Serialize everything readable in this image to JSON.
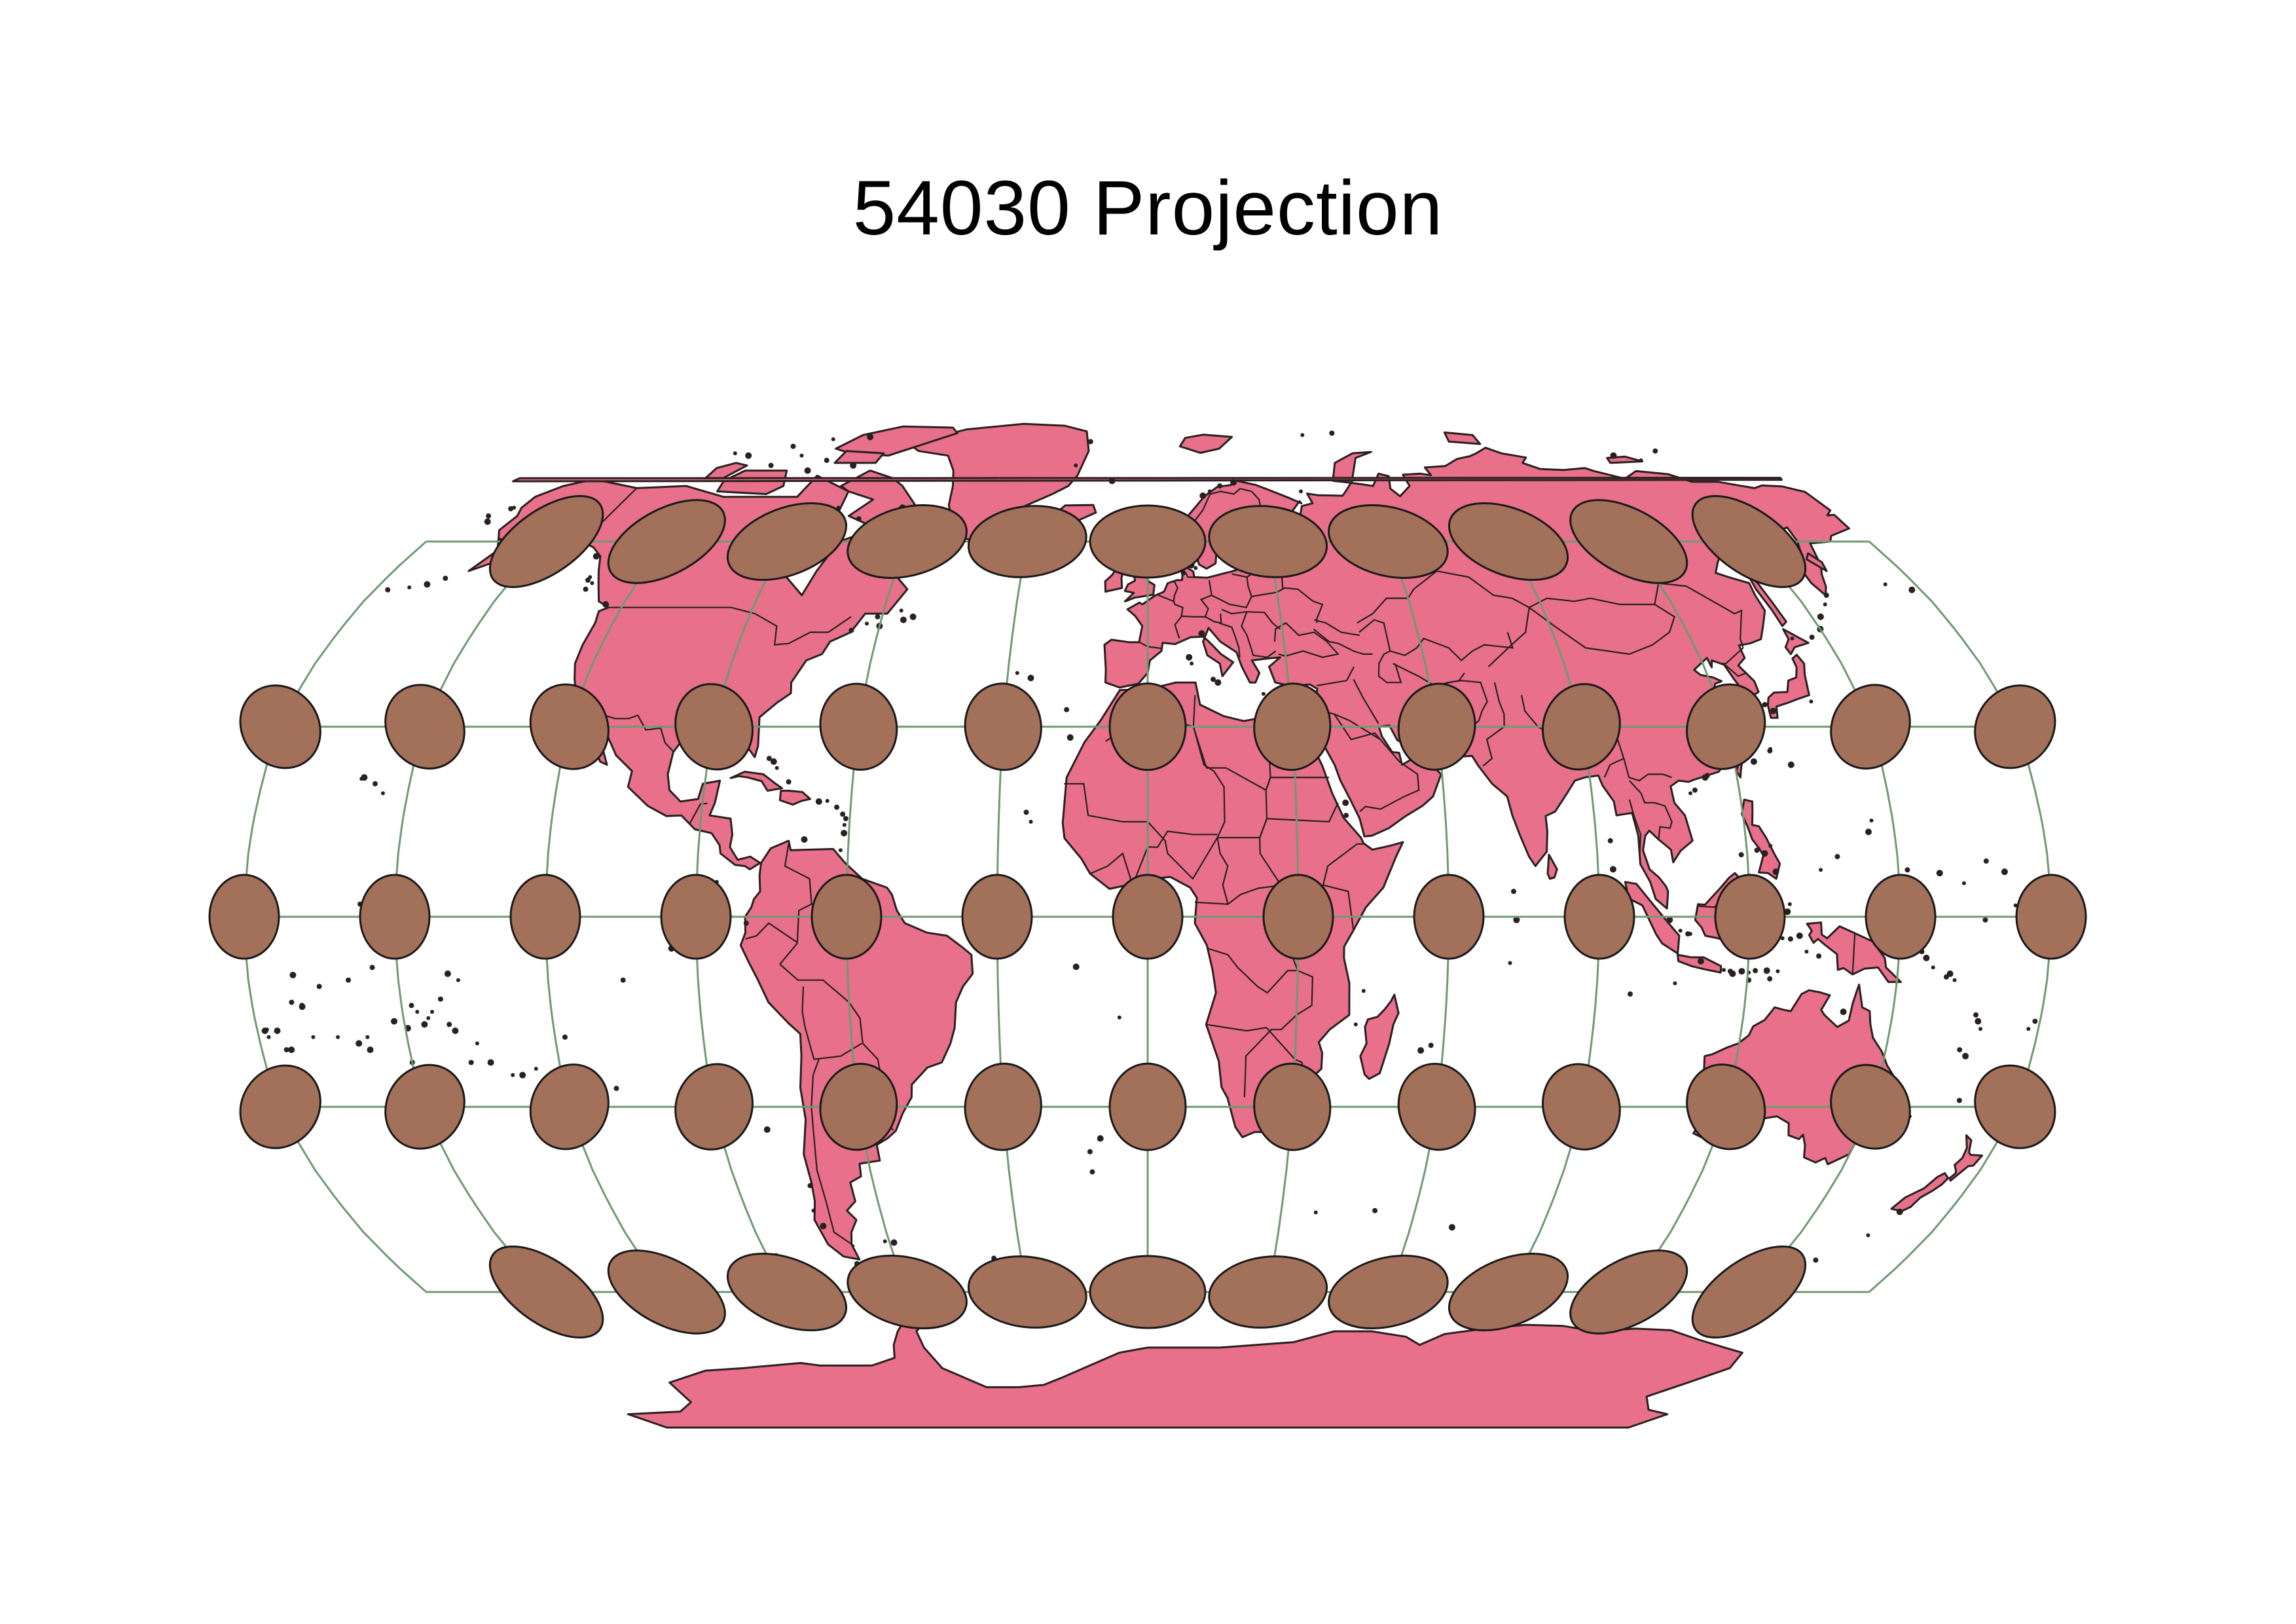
{
  "title": "54030 Projection",
  "colors": {
    "land": "#e8708a",
    "tissot": "#a3705a",
    "graticule": "#6f9a72",
    "outline": "#2a2020",
    "background": "#ffffff"
  }
}
